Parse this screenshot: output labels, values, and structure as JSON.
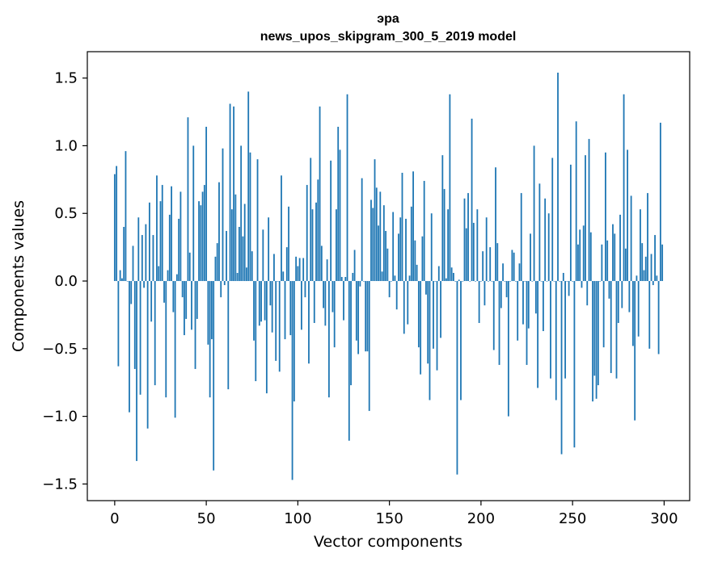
{
  "chart_data": {
    "type": "bar",
    "title": "эра",
    "subtitle": "news_upos_skipgram_300_5_2019 model",
    "xlabel": "Vector components",
    "ylabel": "Components values",
    "xlim": [
      -14.95,
      313.95
    ],
    "ylim": [
      -1.623,
      1.695
    ],
    "xticks": [
      0,
      50,
      100,
      150,
      200,
      250,
      300
    ],
    "yticks": [
      -1.5,
      -1.0,
      -0.5,
      0.0,
      0.5,
      1.0,
      1.5
    ],
    "ytick_labels": [
      "−1.5",
      "−1.0",
      "−0.5",
      "0.0",
      "0.5",
      "1.0",
      "1.5"
    ],
    "bar_color": "#1f77b4",
    "grid": false,
    "legend": "none",
    "x": [
      0,
      1,
      2,
      3,
      4,
      5,
      6,
      7,
      8,
      9,
      10,
      11,
      12,
      13,
      14,
      15,
      16,
      17,
      18,
      19,
      20,
      21,
      22,
      23,
      24,
      25,
      26,
      27,
      28,
      29,
      30,
      31,
      32,
      33,
      34,
      35,
      36,
      37,
      38,
      39,
      40,
      41,
      42,
      43,
      44,
      45,
      46,
      47,
      48,
      49,
      50,
      51,
      52,
      53,
      54,
      55,
      56,
      57,
      58,
      59,
      60,
      61,
      62,
      63,
      64,
      65,
      66,
      67,
      68,
      69,
      70,
      71,
      72,
      73,
      74,
      75,
      76,
      77,
      78,
      79,
      80,
      81,
      82,
      83,
      84,
      85,
      86,
      87,
      88,
      89,
      90,
      91,
      92,
      93,
      94,
      95,
      96,
      97,
      98,
      99,
      100,
      101,
      102,
      103,
      104,
      105,
      106,
      107,
      108,
      109,
      110,
      111,
      112,
      113,
      114,
      115,
      116,
      117,
      118,
      119,
      120,
      121,
      122,
      123,
      124,
      125,
      126,
      127,
      128,
      129,
      130,
      131,
      132,
      133,
      134,
      135,
      136,
      137,
      138,
      139,
      140,
      141,
      142,
      143,
      144,
      145,
      146,
      147,
      148,
      149,
      150,
      151,
      152,
      153,
      154,
      155,
      156,
      157,
      158,
      159,
      160,
      161,
      162,
      163,
      164,
      165,
      166,
      167,
      168,
      169,
      170,
      171,
      172,
      173,
      174,
      175,
      176,
      177,
      178,
      179,
      180,
      181,
      182,
      183,
      184,
      185,
      186,
      187,
      188,
      189,
      190,
      191,
      192,
      193,
      194,
      195,
      196,
      197,
      198,
      199,
      200,
      201,
      202,
      203,
      204,
      205,
      206,
      207,
      208,
      209,
      210,
      211,
      212,
      213,
      214,
      215,
      216,
      217,
      218,
      219,
      220,
      221,
      222,
      223,
      224,
      225,
      226,
      227,
      228,
      229,
      230,
      231,
      232,
      233,
      234,
      235,
      236,
      237,
      238,
      239,
      240,
      241,
      242,
      243,
      244,
      245,
      246,
      247,
      248,
      249,
      250,
      251,
      252,
      253,
      254,
      255,
      256,
      257,
      258,
      259,
      260,
      261,
      262,
      263,
      264,
      265,
      266,
      267,
      268,
      269,
      270,
      271,
      272,
      273,
      274,
      275,
      276,
      277,
      278,
      279,
      280,
      281,
      282,
      283,
      284,
      285,
      286,
      287,
      288,
      289,
      290,
      291,
      292,
      293,
      294,
      295,
      296,
      297,
      298,
      299
    ],
    "values": [
      0.79,
      0.85,
      -0.63,
      0.08,
      0.02,
      0.4,
      0.96,
      0.0,
      -0.97,
      -0.17,
      0.26,
      -0.65,
      -1.33,
      0.47,
      -0.84,
      0.34,
      -0.05,
      0.42,
      -1.09,
      0.58,
      -0.3,
      0.34,
      -0.77,
      0.78,
      0.11,
      0.59,
      0.71,
      -0.16,
      -0.86,
      0.08,
      0.49,
      0.7,
      -0.23,
      -1.01,
      0.05,
      0.46,
      0.66,
      -0.12,
      -0.4,
      -0.28,
      1.21,
      0.21,
      -0.36,
      1.0,
      -0.65,
      -0.28,
      0.59,
      0.56,
      0.66,
      0.71,
      1.14,
      -0.47,
      -0.86,
      -0.43,
      -1.4,
      0.18,
      0.28,
      0.73,
      -0.12,
      0.98,
      -0.03,
      0.37,
      -0.8,
      1.31,
      0.53,
      1.29,
      0.64,
      0.06,
      0.4,
      1.0,
      0.33,
      0.57,
      0.1,
      1.4,
      0.95,
      0.22,
      -0.44,
      -0.74,
      0.9,
      -0.33,
      -0.3,
      0.38,
      -0.29,
      -0.83,
      0.47,
      -0.18,
      -0.38,
      0.2,
      -0.59,
      0.0,
      -0.67,
      0.78,
      0.07,
      -0.43,
      0.25,
      0.55,
      -0.4,
      -1.47,
      -0.89,
      0.18,
      0.11,
      0.17,
      -0.36,
      0.17,
      -0.12,
      0.71,
      -0.61,
      0.91,
      0.53,
      -0.31,
      0.58,
      0.75,
      1.29,
      0.26,
      -0.2,
      -0.33,
      0.16,
      -0.86,
      0.89,
      -0.23,
      -0.49,
      0.53,
      1.14,
      0.97,
      0.03,
      -0.29,
      0.03,
      1.38,
      -1.18,
      -0.77,
      0.06,
      0.23,
      -0.44,
      -0.54,
      -0.04,
      0.76,
      0.0,
      -0.52,
      -0.52,
      -0.96,
      0.6,
      0.54,
      0.9,
      0.69,
      0.41,
      0.66,
      0.07,
      0.56,
      0.37,
      0.24,
      -0.12,
      0.0,
      0.51,
      0.04,
      -0.21,
      0.35,
      0.47,
      0.8,
      -0.39,
      0.46,
      -0.32,
      0.04,
      0.55,
      0.81,
      0.3,
      0.12,
      -0.49,
      -0.69,
      0.33,
      0.74,
      -0.1,
      -0.61,
      -0.88,
      0.5,
      -0.5,
      0.0,
      -0.66,
      0.11,
      -0.42,
      0.93,
      0.68,
      0.02,
      0.53,
      1.38,
      0.1,
      0.06,
      0.0,
      -1.43,
      0.01,
      -0.88,
      0.0,
      0.61,
      0.39,
      0.65,
      0.0,
      1.2,
      0.43,
      0.0,
      0.53,
      -0.31,
      0.0,
      0.22,
      -0.18,
      0.47,
      0.0,
      0.25,
      0.0,
      -0.51,
      0.84,
      0.28,
      -0.62,
      -0.2,
      0.13,
      0.0,
      -0.12,
      -1.0,
      0.0,
      0.23,
      0.21,
      0.0,
      -0.44,
      0.13,
      0.65,
      -0.32,
      0.0,
      -0.62,
      -0.35,
      0.35,
      0.0,
      1.0,
      -0.24,
      -0.79,
      0.72,
      0.0,
      -0.37,
      0.61,
      0.0,
      0.5,
      -0.72,
      0.91,
      0.0,
      -0.88,
      1.54,
      0.0,
      -1.28,
      0.06,
      -0.72,
      0.0,
      -0.11,
      0.86,
      0.0,
      -1.23,
      1.18,
      0.27,
      0.38,
      -0.05,
      0.41,
      0.93,
      -0.18,
      1.05,
      0.36,
      -0.89,
      -0.7,
      -0.87,
      -0.77,
      0.0,
      0.27,
      -0.49,
      0.95,
      0.3,
      -0.13,
      -0.68,
      0.42,
      0.35,
      -0.72,
      -0.31,
      0.49,
      -0.2,
      1.38,
      0.24,
      0.97,
      -0.23,
      0.63,
      -0.48,
      -1.03,
      0.04,
      -0.41,
      0.53,
      0.28,
      0.08,
      0.18,
      0.65,
      -0.5,
      0.2,
      -0.03,
      0.34,
      0.04,
      -0.54,
      1.17,
      0.27
    ]
  }
}
